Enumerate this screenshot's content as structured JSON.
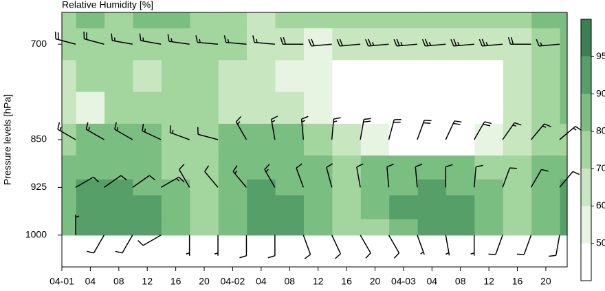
{
  "chart_data": {
    "type": "contour",
    "title": "Relative Humidity [%]",
    "ylabel": "Pressure levels [hPa]",
    "xlim": [
      0,
      71
    ],
    "xticks": [
      {
        "value": 0,
        "label": "04-01"
      },
      {
        "value": 4,
        "label": "04"
      },
      {
        "value": 8,
        "label": "08"
      },
      {
        "value": 12,
        "label": "12"
      },
      {
        "value": 16,
        "label": "16"
      },
      {
        "value": 20,
        "label": "20"
      },
      {
        "value": 24,
        "label": "04-02"
      },
      {
        "value": 28,
        "label": "04"
      },
      {
        "value": 32,
        "label": "08"
      },
      {
        "value": 36,
        "label": "12"
      },
      {
        "value": 40,
        "label": "16"
      },
      {
        "value": 44,
        "label": "20"
      },
      {
        "value": 48,
        "label": "04-03"
      },
      {
        "value": 52,
        "label": "04"
      },
      {
        "value": 56,
        "label": "08"
      },
      {
        "value": 60,
        "label": "12"
      },
      {
        "value": 64,
        "label": "16"
      },
      {
        "value": 68,
        "label": "20"
      }
    ],
    "ylim": [
      1050,
      650
    ],
    "yticks": [
      700,
      850,
      925,
      1000
    ],
    "x": [
      0,
      4,
      8,
      12,
      16,
      20,
      24,
      28,
      32,
      36,
      40,
      44,
      48,
      52,
      56,
      60,
      64,
      68,
      72
    ],
    "pressure": [
      650,
      700,
      750,
      800,
      850,
      900,
      925,
      950,
      1000
    ],
    "rh": [
      [
        75,
        80,
        78,
        80,
        82,
        78,
        72,
        68,
        70,
        72,
        70,
        72,
        75,
        78,
        72,
        70,
        75,
        80,
        85
      ],
      [
        70,
        72,
        75,
        72,
        72,
        72,
        70,
        65,
        60,
        58,
        60,
        62,
        65,
        65,
        62,
        60,
        65,
        72,
        80
      ],
      [
        65,
        70,
        72,
        68,
        70,
        72,
        68,
        60,
        58,
        50,
        42,
        40,
        40,
        40,
        40,
        45,
        60,
        75,
        88
      ],
      [
        60,
        55,
        70,
        72,
        70,
        70,
        68,
        65,
        60,
        55,
        45,
        40,
        40,
        40,
        40,
        45,
        60,
        75,
        82
      ],
      [
        75,
        80,
        82,
        82,
        78,
        75,
        80,
        82,
        82,
        78,
        60,
        50,
        45,
        45,
        48,
        55,
        68,
        72,
        75
      ],
      [
        80,
        86,
        86,
        85,
        78,
        72,
        85,
        88,
        85,
        80,
        72,
        80,
        82,
        82,
        80,
        78,
        72,
        80,
        85
      ],
      [
        82,
        90,
        90,
        88,
        80,
        72,
        85,
        90,
        88,
        82,
        75,
        85,
        88,
        90,
        88,
        82,
        75,
        85,
        90
      ],
      [
        85,
        92,
        93,
        93,
        88,
        75,
        88,
        92,
        90,
        82,
        72,
        80,
        90,
        92,
        90,
        85,
        75,
        88,
        92
      ],
      [
        82,
        90,
        92,
        92,
        85,
        75,
        88,
        93,
        93,
        85,
        72,
        78,
        88,
        90,
        90,
        85,
        72,
        88,
        92
      ]
    ],
    "levels": [
      50,
      60,
      70,
      80,
      90,
      95
    ],
    "colors": [
      "#ffffff",
      "#e6f4e1",
      "#c8e7c0",
      "#a3d59f",
      "#7bbe82",
      "#579f68",
      "#3c7f53"
    ],
    "wind": {
      "x": [
        0,
        4,
        8,
        12,
        16,
        20,
        24,
        28,
        32,
        36,
        40,
        44,
        48,
        52,
        56,
        60,
        64,
        68
      ],
      "pressure": [
        700,
        850,
        925,
        1000
      ],
      "direction": [
        [
          285,
          285,
          280,
          280,
          278,
          275,
          275,
          275,
          270,
          265,
          265,
          265,
          265,
          265,
          265,
          265,
          270,
          265
        ],
        [
          300,
          300,
          300,
          295,
          290,
          285,
          330,
          350,
          355,
          5,
          10,
          15,
          20,
          25,
          30,
          35,
          40,
          50
        ],
        [
          60,
          55,
          55,
          60,
          330,
          320,
          320,
          330,
          340,
          345,
          350,
          355,
          355,
          0,
          5,
          20,
          30,
          40
        ],
        [
          0,
          210,
          210,
          240,
          180,
          180,
          180,
          180,
          160,
          155,
          150,
          150,
          160,
          170,
          180,
          200,
          200,
          190
        ]
      ],
      "speed": [
        [
          20,
          20,
          15,
          15,
          15,
          15,
          15,
          15,
          20,
          20,
          20,
          25,
          25,
          25,
          25,
          25,
          20,
          15
        ],
        [
          15,
          15,
          15,
          15,
          15,
          10,
          15,
          15,
          15,
          15,
          20,
          20,
          20,
          20,
          20,
          15,
          15,
          15
        ],
        [
          10,
          10,
          10,
          15,
          10,
          10,
          15,
          15,
          10,
          10,
          10,
          10,
          10,
          10,
          10,
          10,
          10,
          10
        ],
        [
          5,
          10,
          10,
          10,
          5,
          5,
          10,
          10,
          10,
          10,
          10,
          10,
          5,
          5,
          5,
          10,
          10,
          10
        ]
      ]
    }
  }
}
